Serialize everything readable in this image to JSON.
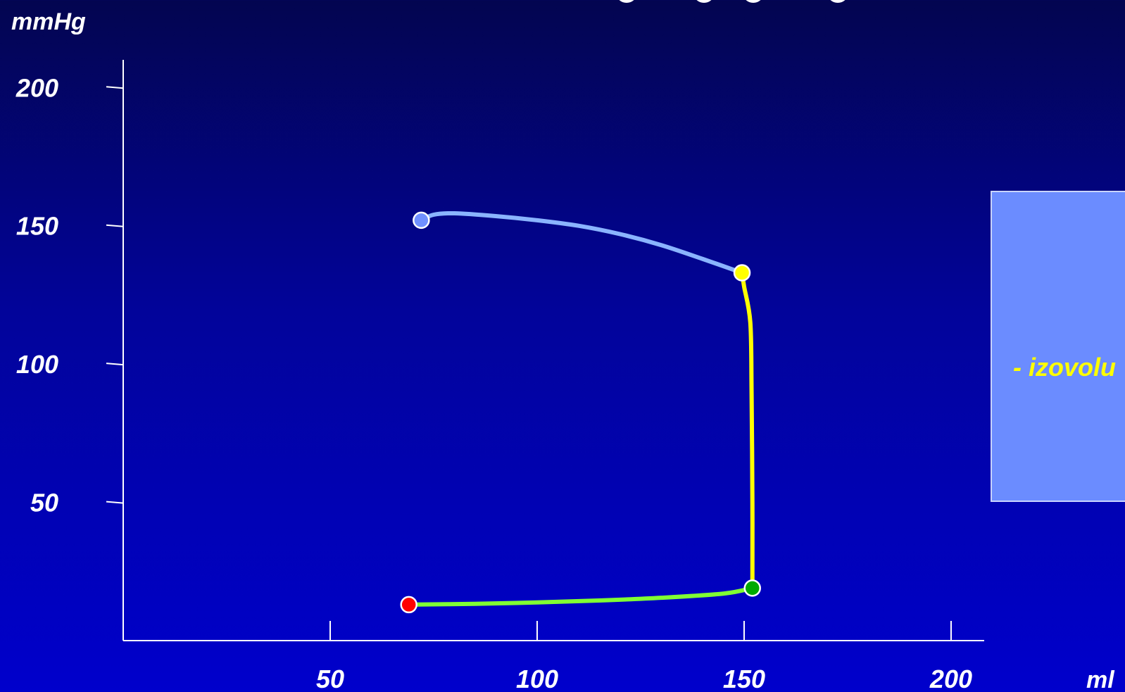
{
  "colors": {
    "background_top": "#030550",
    "background_bottom": "#0000cc",
    "axis": "#ffffff",
    "ejection_curve": "#8ab4ff",
    "isovolumetric_curve": "#ffff00",
    "filling_curve": "#80ff33",
    "point_start_ejection_end": "#7090ff",
    "point_yellow": "#ffff00",
    "point_green": "#00aa00",
    "point_red": "#ff0000",
    "panel_fill": "#6b8cff",
    "panel_text": "#ffff00"
  },
  "chart_data": {
    "type": "line",
    "ylabel": "mmHg",
    "xlabel": "ml",
    "xlim": [
      0,
      208
    ],
    "ylim": [
      0,
      210
    ],
    "x_ticks": [
      50,
      100,
      150,
      200
    ],
    "y_ticks": [
      50,
      100,
      150,
      200
    ],
    "x_tick_labels": [
      "50",
      "100",
      "150",
      "200"
    ],
    "y_tick_labels": [
      "50",
      "100",
      "150",
      "200"
    ],
    "grid": false,
    "series": [
      {
        "color": "#80ff33",
        "x": [
          69,
          85,
          100,
          115,
          130,
          145,
          152
        ],
        "y": [
          13,
          13.3,
          13.8,
          14.5,
          15.5,
          17,
          19
        ]
      },
      {
        "color": "#ffff00",
        "x": [
          152,
          152,
          151.8,
          151.5,
          150,
          149.5
        ],
        "y": [
          19,
          50,
          90,
          115,
          128,
          133
        ]
      },
      {
        "color": "#8ab4ff",
        "x": [
          149.5,
          140,
          130,
          120,
          110,
          100,
          90,
          80,
          75,
          72
        ],
        "y": [
          133,
          138,
          143,
          147,
          150,
          152,
          153.5,
          154.5,
          154,
          152
        ]
      }
    ],
    "points": [
      {
        "x": 72,
        "y": 152,
        "color": "#7090ff"
      },
      {
        "x": 149.5,
        "y": 133,
        "color": "#ffff00"
      },
      {
        "x": 152,
        "y": 19,
        "color": "#00aa00"
      },
      {
        "x": 69,
        "y": 13,
        "color": "#ff0000"
      }
    ]
  },
  "side_panel": {
    "text": "- izovolu"
  }
}
